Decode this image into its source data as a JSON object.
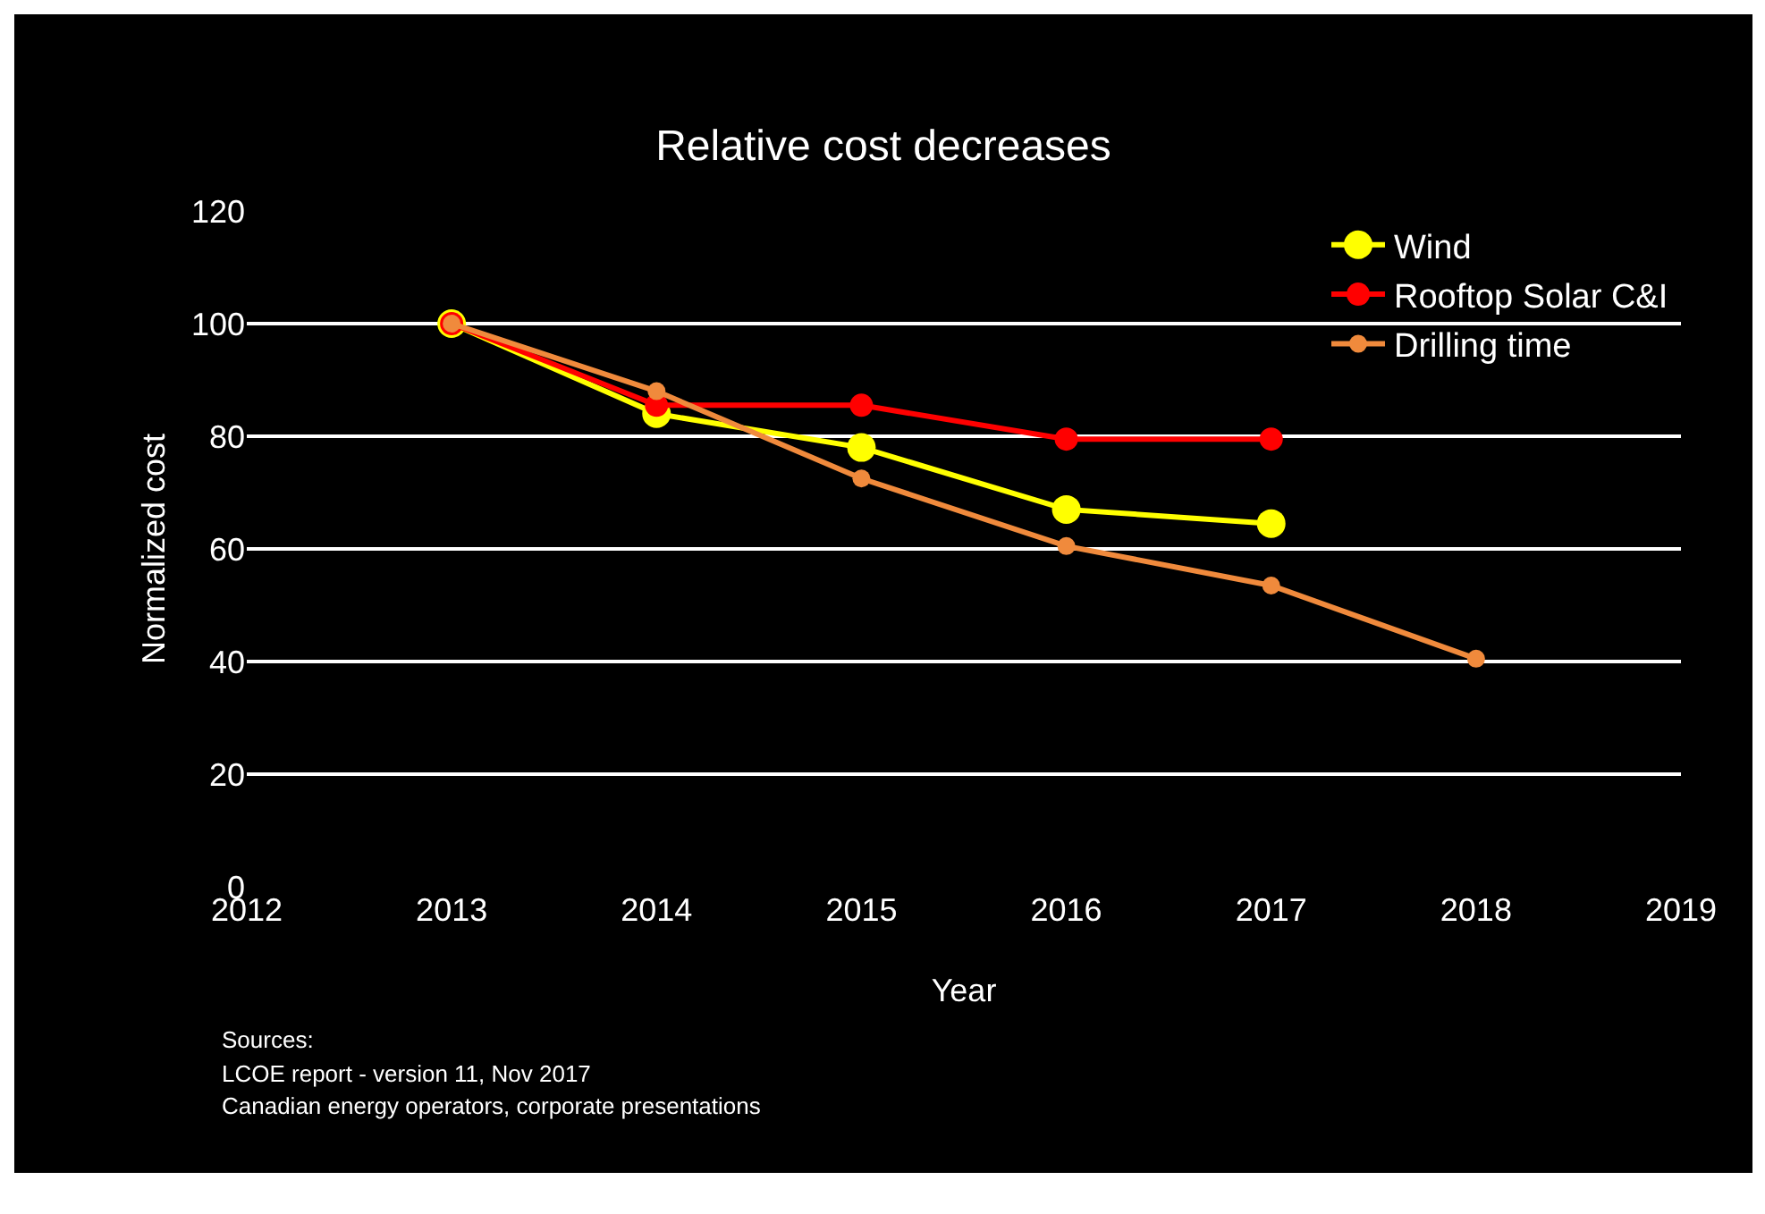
{
  "chart_data": {
    "type": "line",
    "title": "Relative cost decreases",
    "xlabel": "Year",
    "ylabel": "Normalized cost",
    "xlim": [
      2012,
      2019
    ],
    "xticks": [
      2012,
      2013,
      2014,
      2015,
      2016,
      2017,
      2018,
      2019
    ],
    "ylim": [
      0,
      120
    ],
    "yticks": [
      0,
      20,
      40,
      60,
      80,
      100,
      120
    ],
    "grid": "y",
    "legend": "top right",
    "marker": "circle",
    "line_style": "solid",
    "series": [
      {
        "name": "Wind",
        "color": "#ffff00",
        "x": [
          2013,
          2014,
          2015,
          2016,
          2017
        ],
        "values": [
          100,
          84,
          78,
          67,
          64.5
        ]
      },
      {
        "name": "Rooftop Solar C&I",
        "color": "#ff0000",
        "x": [
          2013,
          2014,
          2015,
          2016,
          2017
        ],
        "values": [
          100,
          85.5,
          85.5,
          79.5,
          79.5
        ]
      },
      {
        "name": "Drilling time",
        "color": "#f08a3c",
        "x": [
          2013,
          2014,
          2015,
          2016,
          2017,
          2018
        ],
        "values": [
          100,
          88,
          72.5,
          60.5,
          53.5,
          40.5
        ]
      }
    ],
    "annotations": [
      "Sources:",
      "LCOE report - version 11, Nov 2017",
      "Canadian energy operators, corporate presentations"
    ]
  }
}
